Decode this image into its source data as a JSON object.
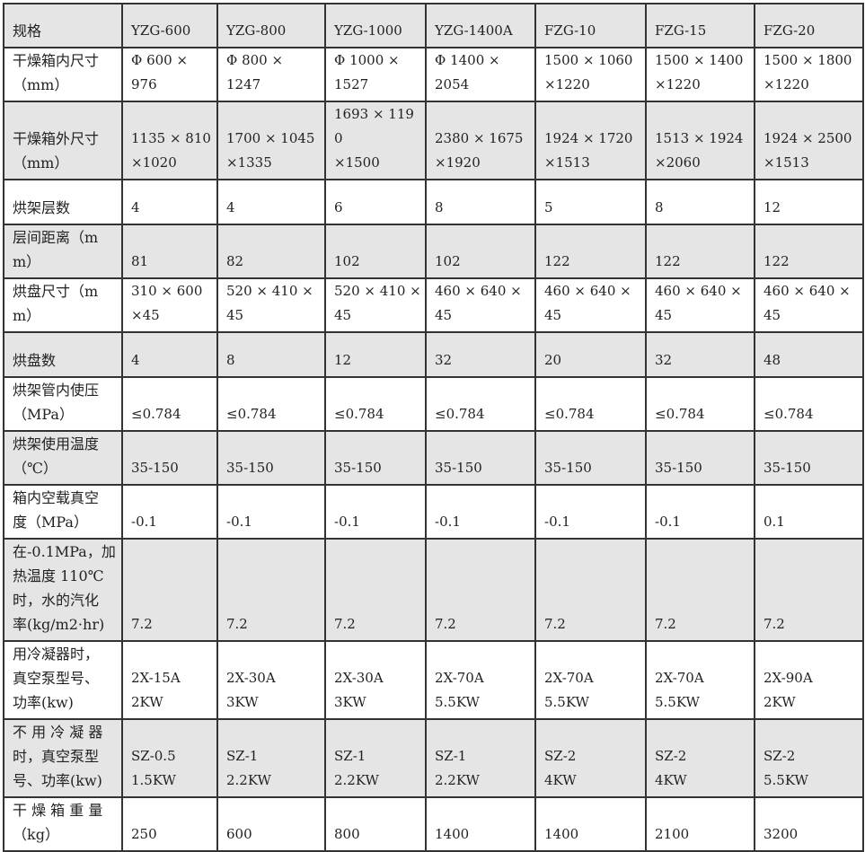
{
  "table": {
    "header": [
      "规格",
      "YZG-600",
      "YZG-800",
      "YZG-1000",
      "YZG-1400A",
      "FZG-10",
      "FZG-15",
      "FZG-20"
    ],
    "rows": [
      {
        "label": "干燥箱内尺寸\n（mm）",
        "values": [
          "Φ  600  ×\n976",
          "Φ  800  ×\n1247",
          "Φ  1000  ×\n1527",
          "Φ  1400  ×\n2054",
          "1500 × 1060\n×1220",
          "1500 × 1400\n×1220",
          "1500 × 1800\n×1220"
        ]
      },
      {
        "label": "干燥箱外尺寸\n（mm）",
        "values": [
          "1135 × 810\n×1020",
          "1700 × 1045\n×1335",
          "1693 × 1190\n×1500",
          "2380 × 1675\n×1920",
          "1924 × 1720\n×1513",
          "1513 × 1924\n×2060",
          "1924 × 2500\n×1513"
        ]
      },
      {
        "label": "烘架层数",
        "values": [
          "4",
          "4",
          "6",
          "8",
          "5",
          "8",
          "12"
        ]
      },
      {
        "label": "层间距离（mm）",
        "values": [
          "81",
          "82",
          "102",
          "102",
          "122",
          "122",
          "122"
        ]
      },
      {
        "label": "烘盘尺寸（mm）",
        "values": [
          "310 × 600\n×45",
          "520 × 410 ×\n45",
          "520 × 410 ×\n45",
          "460 × 640 ×\n45",
          "460 × 640 ×\n45",
          "460 × 640 ×\n45",
          "460 × 640 ×\n45"
        ]
      },
      {
        "label": "烘盘数",
        "values": [
          "4",
          "8",
          "12",
          "32",
          "20",
          "32",
          "48"
        ]
      },
      {
        "label": "烘架管内使压\n（MPa）",
        "values": [
          "≤0.784",
          "≤0.784",
          "≤0.784",
          "≤0.784",
          "≤0.784",
          "≤0.784",
          "≤0.784"
        ]
      },
      {
        "label": "烘架使用温度\n（℃）",
        "values": [
          "35-150",
          "35-150",
          "35-150",
          "35-150",
          "35-150",
          "35-150",
          "35-150"
        ]
      },
      {
        "label": "箱内空载真空\n度（MPa）",
        "values": [
          "-0.1",
          "-0.1",
          "-0.1",
          "-0.1",
          "-0.1",
          "-0.1",
          "0.1"
        ]
      },
      {
        "label": "在-0.1MPa，加\n热温度 110℃\n时，水的汽化\n率(kg/m2·hr)",
        "values": [
          "7.2",
          "7.2",
          "7.2",
          "7.2",
          "7.2",
          "7.2",
          "7.2"
        ]
      },
      {
        "label": "用冷凝器时，\n真空泵型号、\n功率(kw)",
        "values": [
          "2X-15A\n2KW",
          "2X-30A\n3KW",
          "2X-30A\n3KW",
          "2X-70A\n5.5KW",
          "2X-70A\n5.5KW",
          "2X-70A\n5.5KW",
          "2X-90A\n2KW"
        ]
      },
      {
        "label": "不 用 冷 凝 器\n时，真空泵型\n号、功率(kw)",
        "values": [
          "SZ-0.5\n1.5KW",
          "SZ-1\n2.2KW",
          "SZ-1\n2.2KW",
          "SZ-1\n2.2KW",
          "SZ-2\n4KW",
          "SZ-2\n4KW",
          "SZ-2\n5.5KW"
        ]
      },
      {
        "label": "干 燥 箱 重 量\n（kg）",
        "values": [
          "250",
          "600",
          "800",
          "1400",
          "1400",
          "2100",
          "3200"
        ]
      }
    ]
  }
}
